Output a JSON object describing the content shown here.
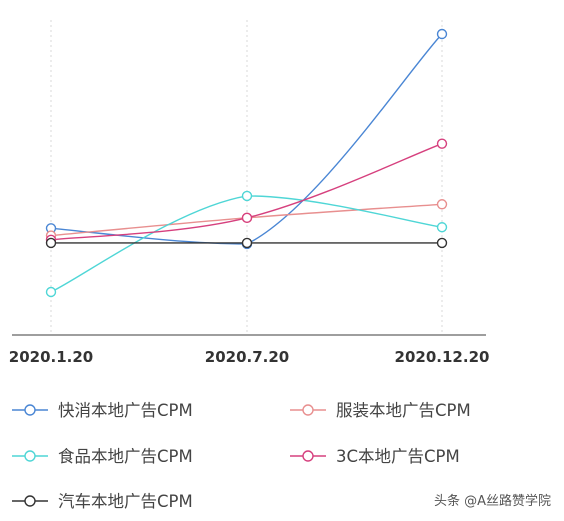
{
  "chart_data": {
    "type": "line",
    "categories": [
      "2020.1.20",
      "2020.7.20",
      "2020.12.20"
    ],
    "grid": "vertical dashed",
    "legend_position": "bottom",
    "series": [
      {
        "name": "快消本地广告CPM",
        "color": "#4a86d4",
        "values": [
          61,
          46,
          247
        ]
      },
      {
        "name": "服装本地广告CPM",
        "color": "#e88f8f",
        "values": [
          54,
          71,
          84
        ]
      },
      {
        "name": "食品本地广告CPM",
        "color": "#4fd6d6",
        "values": [
          0,
          92,
          62
        ]
      },
      {
        "name": "3C本地广告CPM",
        "color": "#d6407e",
        "values": [
          50,
          71,
          142
        ]
      },
      {
        "name": "汽车本地广告CPM",
        "color": "#333333",
        "values": [
          47,
          47,
          47
        ]
      }
    ]
  },
  "watermark": "头条 @A丝路赞学院"
}
